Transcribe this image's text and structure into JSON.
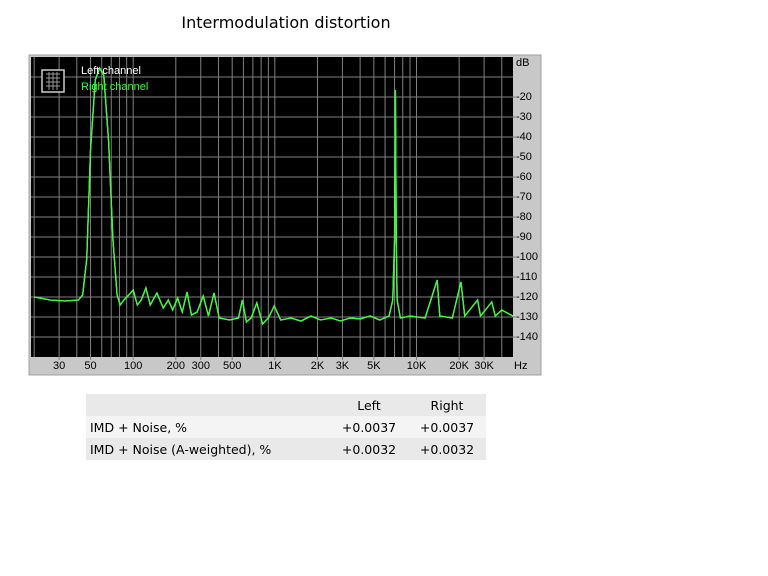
{
  "chart_data": {
    "type": "line",
    "title": "Intermodulation distortion",
    "x_unit": "Hz",
    "y_unit": "dB",
    "log_x": true,
    "grid": true,
    "xlim": [
      19,
      48000
    ],
    "ylim": [
      -150,
      0
    ],
    "xticks": [
      30,
      50,
      100,
      200,
      300,
      500,
      {
        "value": 1000,
        "label": "1K"
      },
      {
        "value": 2000,
        "label": "2K"
      },
      {
        "value": 3000,
        "label": "3K"
      },
      {
        "value": 5000,
        "label": "5K"
      },
      {
        "value": 10000,
        "label": "10K"
      },
      {
        "value": 20000,
        "label": "20K"
      },
      {
        "value": 30000,
        "label": "30K"
      }
    ],
    "xgrid": [
      20,
      30,
      40,
      50,
      60,
      70,
      80,
      90,
      100,
      200,
      300,
      400,
      500,
      600,
      700,
      800,
      900,
      1000,
      2000,
      3000,
      4000,
      5000,
      6000,
      7000,
      8000,
      9000,
      10000,
      20000,
      30000,
      40000
    ],
    "yticks": [
      -20,
      -30,
      -40,
      -50,
      -60,
      -70,
      -80,
      -90,
      -100,
      -110,
      -120,
      -130,
      -140
    ],
    "ygrid": [
      -10,
      -20,
      -30,
      -40,
      -50,
      -60,
      -70,
      -80,
      -90,
      -100,
      -110,
      -120,
      -130,
      -140
    ],
    "x": [
      20,
      26,
      33,
      41,
      44,
      47,
      50,
      54,
      58,
      62,
      67,
      72,
      77,
      81,
      86,
      93,
      100,
      107,
      114,
      123,
      132,
      147,
      163,
      177,
      190,
      206,
      222,
      240,
      258,
      283,
      312,
      340,
      372,
      405,
      478,
      554,
      590,
      630,
      680,
      746,
      820,
      900,
      990,
      1100,
      1300,
      1530,
      1800,
      2100,
      2500,
      2900,
      3400,
      4000,
      4700,
      5500,
      6400,
      6800,
      7000,
      7100,
      7200,
      7300,
      7700,
      9000,
      11500,
      14000,
      14600,
      17900,
      20600,
      21900,
      27000,
      28300,
      34000,
      36000,
      40000,
      48000
    ],
    "series": [
      {
        "name": "Left channel",
        "color": "#ffffff",
        "values": [
          -120,
          -121.5,
          -122,
          -121.5,
          -119,
          -101,
          -46.5,
          -11.5,
          -5.5,
          -9,
          -41.5,
          -91.5,
          -119,
          -124,
          -121.5,
          -119,
          -116.5,
          -124,
          -121.5,
          -115.5,
          -124,
          -118,
          -125.5,
          -121.5,
          -126.5,
          -120.5,
          -127.5,
          -117.5,
          -129,
          -127.5,
          -119.5,
          -129.5,
          -118,
          -130.5,
          -131.5,
          -130.5,
          -121.5,
          -132.5,
          -130.5,
          -123,
          -133.5,
          -130.5,
          -124.5,
          -131.5,
          -130.5,
          -132,
          -129.5,
          -131.5,
          -130.5,
          -132,
          -130.5,
          -131,
          -129.5,
          -131.5,
          -129.5,
          -121.5,
          -91.5,
          -16.5,
          -91.5,
          -121.5,
          -130.5,
          -129.5,
          -130.5,
          -111.5,
          -129.5,
          -130.5,
          -112.5,
          -129.5,
          -121.5,
          -129.5,
          -122.5,
          -129.5,
          -126.5,
          -129.5
        ]
      },
      {
        "name": "Right channel",
        "color": "#33ff33",
        "values": [
          -120,
          -121.5,
          -122,
          -121.5,
          -119,
          -101,
          -46.5,
          -11.5,
          -5.5,
          -9,
          -41.5,
          -91.5,
          -119,
          -124,
          -121.5,
          -119,
          -116.5,
          -124,
          -121.5,
          -115.5,
          -124,
          -118,
          -125.5,
          -121.5,
          -126.5,
          -120.5,
          -127.5,
          -117.5,
          -129,
          -127.5,
          -119.5,
          -129.5,
          -118,
          -130.5,
          -131.5,
          -130.5,
          -121.5,
          -132.5,
          -130.5,
          -123,
          -133.5,
          -130.5,
          -124.5,
          -131.5,
          -130.5,
          -132,
          -129.5,
          -131.5,
          -130.5,
          -132,
          -130.5,
          -131,
          -129.5,
          -131.5,
          -129.5,
          -121.5,
          -91.5,
          -16.5,
          -91.5,
          -121.5,
          -130.5,
          -129.5,
          -130.5,
          -111.5,
          -129.5,
          -130.5,
          -112.5,
          -129.5,
          -121.5,
          -129.5,
          -122.5,
          -129.5,
          -126.5,
          -129.5
        ]
      }
    ]
  },
  "table": {
    "header": [
      "Left",
      "Right"
    ],
    "rows": [
      [
        "IMD + Noise, %",
        "+0.0037",
        "+0.0037"
      ],
      [
        "IMD + Noise (A-weighted), %",
        "+0.0032",
        "+0.0032"
      ]
    ]
  }
}
